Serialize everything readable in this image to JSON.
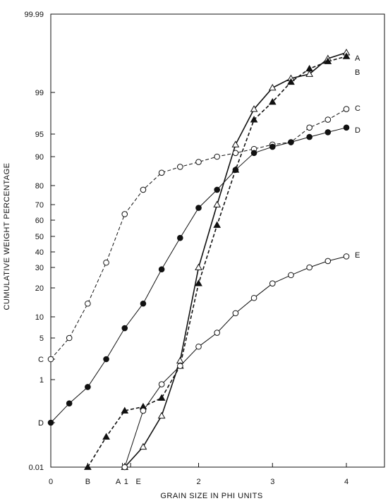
{
  "chart_data": {
    "type": "line",
    "title": "",
    "xlabel": "GRAIN SIZE IN PHI UNITS",
    "ylabel": "CUMULATIVE WEIGHT PERCENTAGE",
    "xlim": [
      0,
      4.5
    ],
    "ylim": [
      0.01,
      99.99
    ],
    "y_scale": "probability",
    "grid": false,
    "x_ticks": [
      {
        "value": 0,
        "label": "0"
      },
      {
        "value": 0.5,
        "label": "B"
      },
      {
        "value": 0.97,
        "label": "A"
      },
      {
        "value": 1.0,
        "label": "1"
      },
      {
        "value": 1.08,
        "label": "E"
      },
      {
        "value": 2,
        "label": "2"
      },
      {
        "value": 3,
        "label": "3"
      },
      {
        "value": 4,
        "label": "4"
      }
    ],
    "y_ticks": [
      {
        "value": 0.01,
        "label": "0.01"
      },
      {
        "value": 0.1,
        "label": "D"
      },
      {
        "value": 1,
        "label": "1"
      },
      {
        "value": 2,
        "label": "C"
      },
      {
        "value": 5,
        "label": "5"
      },
      {
        "value": 10,
        "label": "10"
      },
      {
        "value": 20,
        "label": "20"
      },
      {
        "value": 30,
        "label": "30"
      },
      {
        "value": 40,
        "label": "40"
      },
      {
        "value": 50,
        "label": "50"
      },
      {
        "value": 60,
        "label": "60"
      },
      {
        "value": 70,
        "label": "70"
      },
      {
        "value": 80,
        "label": "80"
      },
      {
        "value": 90,
        "label": "90"
      },
      {
        "value": 95,
        "label": "95"
      },
      {
        "value": 99,
        "label": "99"
      },
      {
        "value": 99.99,
        "label": "99.99"
      }
    ],
    "series": [
      {
        "name": "A",
        "marker": "open-triangle",
        "line": "solid",
        "x": [
          1.0,
          1.25,
          1.5,
          1.75,
          2.0,
          2.25,
          2.5,
          2.75,
          3.0,
          3.25,
          3.5,
          3.75,
          4.0
        ],
        "y": [
          0.01,
          0.03,
          0.15,
          1.9,
          30,
          70,
          93,
          98,
          99.2,
          99.5,
          99.6,
          99.83,
          99.88
        ]
      },
      {
        "name": "B",
        "marker": "filled-triangle",
        "line": "dashed",
        "x": [
          0.5,
          0.75,
          1.0,
          1.25,
          1.5,
          1.75,
          2.0,
          2.25,
          2.5,
          2.75,
          3.0,
          3.25,
          3.5,
          3.75,
          4.0
        ],
        "y": [
          0.01,
          0.05,
          0.2,
          0.25,
          0.4,
          1.6,
          22,
          57,
          86,
          97,
          98.5,
          99.4,
          99.7,
          99.8,
          99.85
        ]
      },
      {
        "name": "C",
        "marker": "open-circle",
        "line": "dashed",
        "x": [
          0,
          0.25,
          0.5,
          0.75,
          1.0,
          1.25,
          1.5,
          1.75,
          2.0,
          2.25,
          2.5,
          2.75,
          3.0,
          3.25,
          3.5,
          3.75,
          4.0
        ],
        "y": [
          2,
          5,
          14,
          33,
          64,
          78,
          85,
          87,
          88.5,
          90,
          91,
          92,
          93,
          93.5,
          96,
          97,
          98
        ]
      },
      {
        "name": "D",
        "marker": "filled-circle",
        "line": "solid",
        "x": [
          0,
          0.25,
          0.5,
          0.75,
          1.0,
          1.25,
          1.5,
          1.75,
          2.0,
          2.25,
          2.5,
          2.75,
          3.0,
          3.25,
          3.5,
          3.75,
          4.0
        ],
        "y": [
          0.1,
          0.3,
          0.7,
          2,
          7,
          14,
          29,
          49,
          68,
          78,
          86,
          91,
          92.5,
          93.5,
          94.5,
          95.3,
          96
        ]
      },
      {
        "name": "E",
        "marker": "open-circle",
        "line": "solid",
        "x": [
          1.0,
          1.25,
          1.5,
          1.75,
          2.0,
          2.25,
          2.5,
          2.75,
          3.0,
          3.25,
          3.5,
          3.75,
          4.0
        ],
        "y": [
          0.01,
          0.2,
          0.8,
          1.6,
          3.5,
          6,
          11,
          16,
          22,
          26,
          30,
          34,
          37
        ]
      }
    ]
  }
}
